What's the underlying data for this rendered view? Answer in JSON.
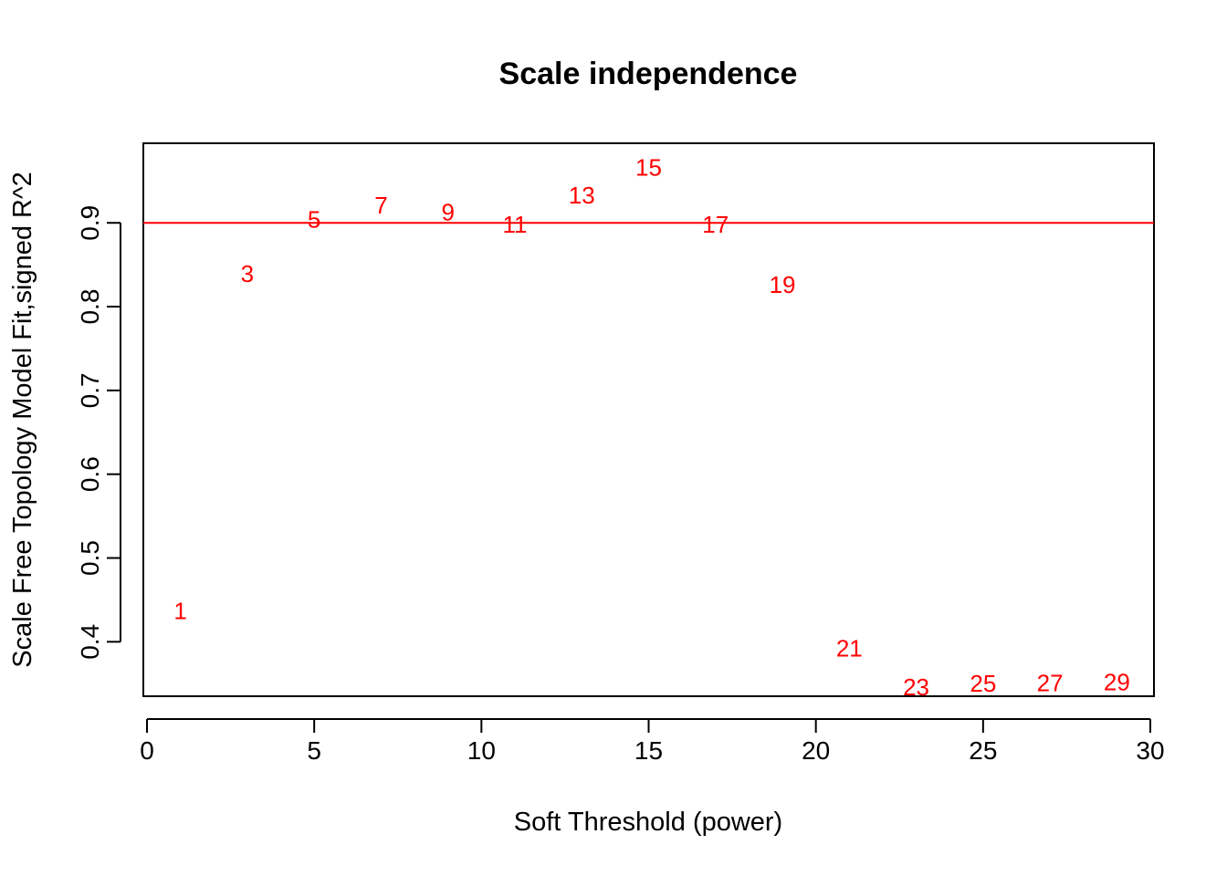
{
  "chart_data": {
    "type": "scatter",
    "title": "Scale independence",
    "xlabel": "Soft Threshold (power)",
    "ylabel": "Scale Free Topology Model Fit,signed R^2",
    "xlim": [
      0,
      30
    ],
    "ylim": [
      0.335,
      0.995
    ],
    "xticks": [
      0,
      5,
      10,
      15,
      20,
      25,
      30
    ],
    "yticks": [
      0.4,
      0.5,
      0.6,
      0.7,
      0.8,
      0.9
    ],
    "point_color": "#ff0000",
    "reference_line": {
      "y": 0.9,
      "color": "#ff0000"
    },
    "points": [
      {
        "x": 1,
        "y": 0.437,
        "label": "1"
      },
      {
        "x": 3,
        "y": 0.839,
        "label": "3"
      },
      {
        "x": 5,
        "y": 0.904,
        "label": "5"
      },
      {
        "x": 7,
        "y": 0.921,
        "label": "7"
      },
      {
        "x": 9,
        "y": 0.913,
        "label": "9"
      },
      {
        "x": 11,
        "y": 0.898,
        "label": "11"
      },
      {
        "x": 13,
        "y": 0.933,
        "label": "13"
      },
      {
        "x": 15,
        "y": 0.966,
        "label": "15"
      },
      {
        "x": 17,
        "y": 0.898,
        "label": "17"
      },
      {
        "x": 19,
        "y": 0.826,
        "label": "19"
      },
      {
        "x": 21,
        "y": 0.392,
        "label": "21"
      },
      {
        "x": 23,
        "y": 0.346,
        "label": "23"
      },
      {
        "x": 25,
        "y": 0.35,
        "label": "25"
      },
      {
        "x": 27,
        "y": 0.351,
        "label": "27"
      },
      {
        "x": 29,
        "y": 0.352,
        "label": "29"
      }
    ]
  }
}
